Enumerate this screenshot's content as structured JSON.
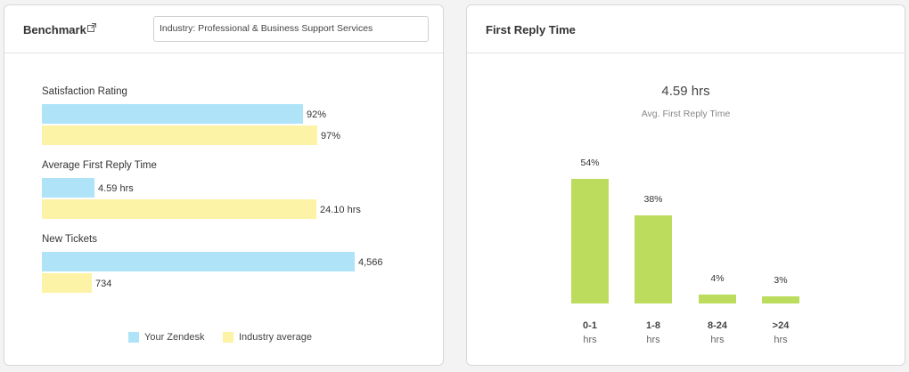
{
  "benchmark": {
    "title": "Benchmark",
    "industry_select": "Industry: Professional & Business Support Services",
    "metrics": [
      {
        "label": "Satisfaction Rating",
        "zendesk": {
          "value": 92,
          "label": "92%"
        },
        "industry": {
          "value": 97,
          "label": "97%"
        }
      },
      {
        "label": "Average First Reply Time",
        "zendesk": {
          "value": 4.59,
          "label": "4.59 hrs"
        },
        "industry": {
          "value": 24.1,
          "label": "24.10 hrs"
        }
      },
      {
        "label": "New Tickets",
        "zendesk": {
          "value": 4566,
          "label": "4,566"
        },
        "industry": {
          "value": 734,
          "label": "734"
        }
      }
    ],
    "legend": [
      {
        "name": "Your Zendesk",
        "color": "#aee3f8"
      },
      {
        "name": "Industry average",
        "color": "#fdf3a6"
      }
    ]
  },
  "first_reply_time": {
    "title": "First Reply Time",
    "value": "4.59 hrs",
    "subtitle": "Avg. First Reply Time",
    "bar_color": "#bcdc5e"
  },
  "chart_data": [
    {
      "type": "bar",
      "orientation": "horizontal",
      "categories": [
        "Satisfaction Rating",
        "Average First Reply Time",
        "New Tickets"
      ],
      "series": [
        {
          "name": "Your Zendesk",
          "values": [
            92,
            4.59,
            4566
          ]
        },
        {
          "name": "Industry average",
          "values": [
            97,
            24.1,
            734
          ]
        }
      ],
      "legend": "bottom"
    },
    {
      "type": "bar",
      "categories": [
        "0-1",
        "1-8",
        "8-24",
        ">24"
      ],
      "category_unit": "hrs",
      "values": [
        54,
        38,
        4,
        3
      ],
      "value_labels": [
        "54%",
        "38%",
        "4%",
        "3%"
      ],
      "ylim": [
        0,
        54
      ]
    }
  ]
}
